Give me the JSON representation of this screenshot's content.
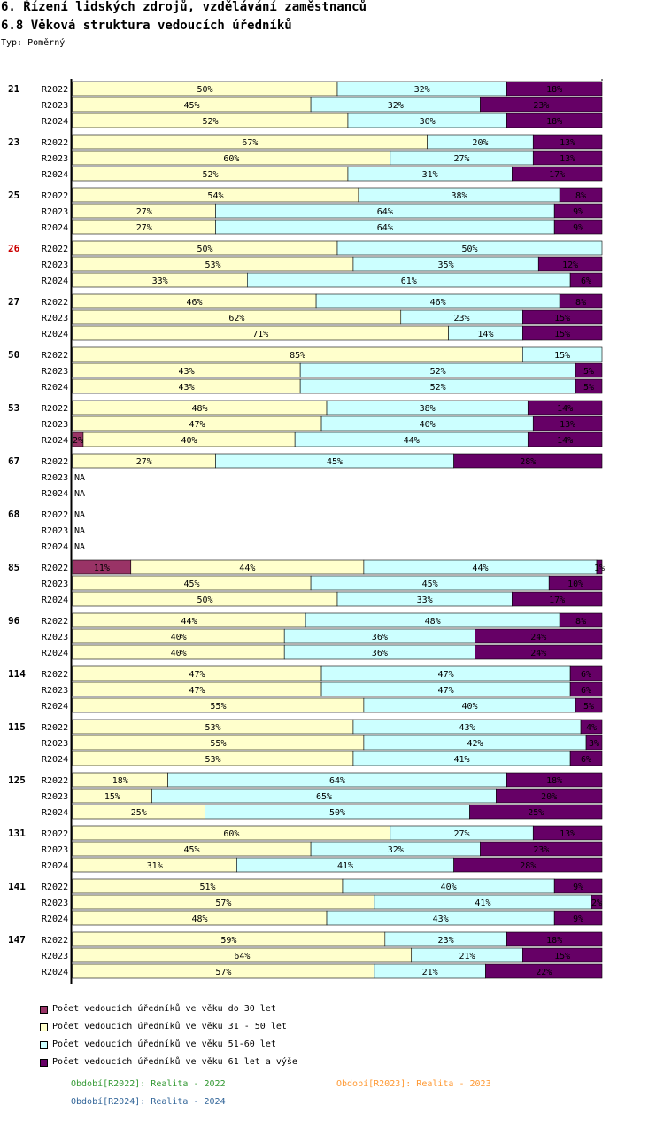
{
  "chart_data": {
    "type": "bar",
    "orientation": "horizontal",
    "stacked": true,
    "normalized": true,
    "title": "6. Řízení lidských zdrojů, vzdělávání zaměstnanců",
    "subtitle": "6.8 Věková struktura vedoucích úředníků",
    "type_label": "Typ: Poměrný",
    "series": [
      {
        "name": "Počet vedoucích úředníků ve věku do 30 let",
        "color": "#993366"
      },
      {
        "name": "Počet vedoucích úředníků ve věku 31 - 50 let",
        "color": "#ffffcc"
      },
      {
        "name": "Počet vedoucích úředníků ve věku 51-60 let",
        "color": "#ccffff"
      },
      {
        "name": "Počet vedoucích úředníků ve věku 61 let a výše",
        "color": "#660066"
      }
    ],
    "groups": [
      {
        "label": "21",
        "highlight": false,
        "rows": [
          {
            "period": "R2022",
            "values": [
              0,
              50,
              32,
              18
            ]
          },
          {
            "period": "R2023",
            "values": [
              0,
              45,
              32,
              23
            ]
          },
          {
            "period": "R2024",
            "values": [
              0,
              52,
              30,
              18
            ]
          }
        ]
      },
      {
        "label": "23",
        "highlight": false,
        "rows": [
          {
            "period": "R2022",
            "values": [
              0,
              67,
              20,
              13
            ]
          },
          {
            "period": "R2023",
            "values": [
              0,
              60,
              27,
              13
            ]
          },
          {
            "period": "R2024",
            "values": [
              0,
              52,
              31,
              17
            ]
          }
        ]
      },
      {
        "label": "25",
        "highlight": false,
        "rows": [
          {
            "period": "R2022",
            "values": [
              0,
              54,
              38,
              8
            ]
          },
          {
            "period": "R2023",
            "values": [
              0,
              27,
              64,
              9
            ]
          },
          {
            "period": "R2024",
            "values": [
              0,
              27,
              64,
              9
            ]
          }
        ]
      },
      {
        "label": "26",
        "highlight": true,
        "rows": [
          {
            "period": "R2022",
            "values": [
              0,
              50,
              50,
              0
            ]
          },
          {
            "period": "R2023",
            "values": [
              0,
              53,
              35,
              12
            ]
          },
          {
            "period": "R2024",
            "values": [
              0,
              33,
              61,
              6
            ]
          }
        ]
      },
      {
        "label": "27",
        "highlight": false,
        "rows": [
          {
            "period": "R2022",
            "values": [
              0,
              46,
              46,
              8
            ]
          },
          {
            "period": "R2023",
            "values": [
              0,
              62,
              23,
              15
            ]
          },
          {
            "period": "R2024",
            "values": [
              0,
              71,
              14,
              15
            ]
          }
        ]
      },
      {
        "label": "50",
        "highlight": false,
        "rows": [
          {
            "period": "R2022",
            "values": [
              0,
              85,
              15,
              0
            ]
          },
          {
            "period": "R2023",
            "values": [
              0,
              43,
              52,
              5
            ]
          },
          {
            "period": "R2024",
            "values": [
              0,
              43,
              52,
              5
            ]
          }
        ]
      },
      {
        "label": "53",
        "highlight": false,
        "rows": [
          {
            "period": "R2022",
            "values": [
              0,
              48,
              38,
              14
            ]
          },
          {
            "period": "R2023",
            "values": [
              0,
              47,
              40,
              13
            ]
          },
          {
            "period": "R2024",
            "values": [
              2,
              40,
              44,
              14
            ]
          }
        ]
      },
      {
        "label": "67",
        "highlight": false,
        "rows": [
          {
            "period": "R2022",
            "values": [
              0,
              27,
              45,
              28
            ]
          },
          {
            "period": "R2023",
            "values": null
          },
          {
            "period": "R2024",
            "values": null
          }
        ]
      },
      {
        "label": "68",
        "highlight": false,
        "rows": [
          {
            "period": "R2022",
            "values": null
          },
          {
            "period": "R2023",
            "values": null
          },
          {
            "period": "R2024",
            "values": null
          }
        ]
      },
      {
        "label": "85",
        "highlight": false,
        "rows": [
          {
            "period": "R2022",
            "values": [
              11,
              44,
              44,
              1
            ]
          },
          {
            "period": "R2023",
            "values": [
              0,
              45,
              45,
              10
            ]
          },
          {
            "period": "R2024",
            "values": [
              0,
              50,
              33,
              17
            ]
          }
        ]
      },
      {
        "label": "96",
        "highlight": false,
        "rows": [
          {
            "period": "R2022",
            "values": [
              0,
              44,
              48,
              8
            ]
          },
          {
            "period": "R2023",
            "values": [
              0,
              40,
              36,
              24
            ]
          },
          {
            "period": "R2024",
            "values": [
              0,
              40,
              36,
              24
            ]
          }
        ]
      },
      {
        "label": "114",
        "highlight": false,
        "rows": [
          {
            "period": "R2022",
            "values": [
              0,
              47,
              47,
              6
            ]
          },
          {
            "period": "R2023",
            "values": [
              0,
              47,
              47,
              6
            ]
          },
          {
            "period": "R2024",
            "values": [
              0,
              55,
              40,
              5
            ]
          }
        ]
      },
      {
        "label": "115",
        "highlight": false,
        "rows": [
          {
            "period": "R2022",
            "values": [
              0,
              53,
              43,
              4
            ]
          },
          {
            "period": "R2023",
            "values": [
              0,
              55,
              42,
              3
            ]
          },
          {
            "period": "R2024",
            "values": [
              0,
              53,
              41,
              6
            ]
          }
        ]
      },
      {
        "label": "125",
        "highlight": false,
        "rows": [
          {
            "period": "R2022",
            "values": [
              0,
              18,
              64,
              18
            ]
          },
          {
            "period": "R2023",
            "values": [
              0,
              15,
              65,
              20
            ]
          },
          {
            "period": "R2024",
            "values": [
              0,
              25,
              50,
              25
            ]
          }
        ]
      },
      {
        "label": "131",
        "highlight": false,
        "rows": [
          {
            "period": "R2022",
            "values": [
              0,
              60,
              27,
              13
            ]
          },
          {
            "period": "R2023",
            "values": [
              0,
              45,
              32,
              23
            ]
          },
          {
            "period": "R2024",
            "values": [
              0,
              31,
              41,
              28
            ]
          }
        ]
      },
      {
        "label": "141",
        "highlight": false,
        "rows": [
          {
            "period": "R2022",
            "values": [
              0,
              51,
              40,
              9
            ]
          },
          {
            "period": "R2023",
            "values": [
              0,
              57,
              41,
              2
            ]
          },
          {
            "period": "R2024",
            "values": [
              0,
              48,
              43,
              9
            ]
          }
        ]
      },
      {
        "label": "147",
        "highlight": false,
        "rows": [
          {
            "period": "R2022",
            "values": [
              0,
              59,
              23,
              18
            ]
          },
          {
            "period": "R2023",
            "values": [
              0,
              64,
              21,
              15
            ]
          },
          {
            "period": "R2024",
            "values": [
              0,
              57,
              21,
              22
            ]
          }
        ]
      }
    ],
    "na_label": "NA",
    "periods": [
      {
        "text": "Období[R2022]: Realita - 2022",
        "color": "#339933"
      },
      {
        "text": "Období[R2023]: Realita - 2023",
        "color": "#ff9933"
      },
      {
        "text": "Období[R2024]: Realita - 2024",
        "color": "#336699"
      }
    ]
  }
}
